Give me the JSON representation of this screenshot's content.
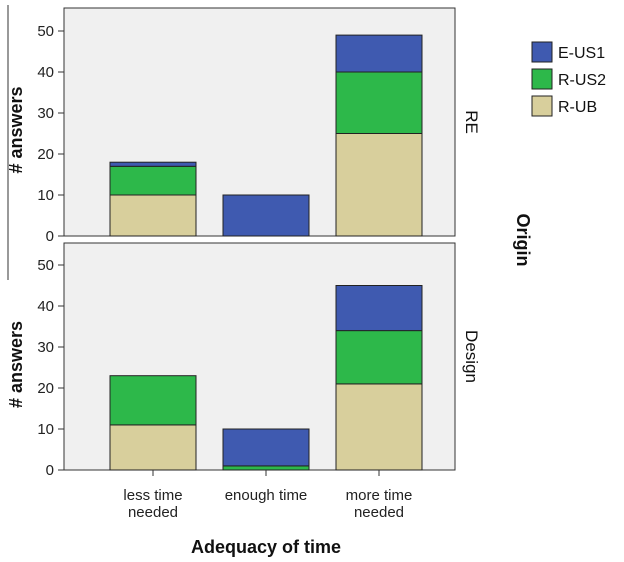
{
  "chart_data": {
    "type": "bar",
    "stacked": true,
    "categories": [
      "less time needed",
      "enough time",
      "more time needed"
    ],
    "category_lines": [
      [
        "less time",
        "needed"
      ],
      [
        "enough time"
      ],
      [
        "more time",
        "needed"
      ]
    ],
    "xlabel": "Adequacy of time",
    "ylabel": "# answers",
    "ylim": [
      0,
      55
    ],
    "yticks": [
      0,
      10,
      20,
      30,
      40,
      50
    ],
    "facet_title": "Origin",
    "legend": {
      "placement": "right",
      "entries": [
        {
          "name": "E-US1",
          "color": "#3f5ab0"
        },
        {
          "name": "R-US2",
          "color": "#2db84a"
        },
        {
          "name": "R-UB",
          "color": "#d8cf9c"
        }
      ]
    },
    "stack_order": [
      "R-UB",
      "R-US2",
      "E-US1"
    ],
    "panels": [
      {
        "label": "RE",
        "series": [
          {
            "name": "R-UB",
            "values": [
              10,
              0,
              25
            ]
          },
          {
            "name": "R-US2",
            "values": [
              7,
              0,
              15
            ]
          },
          {
            "name": "E-US1",
            "values": [
              1,
              10,
              9
            ]
          }
        ]
      },
      {
        "label": "Design",
        "series": [
          {
            "name": "R-UB",
            "values": [
              11,
              0,
              21
            ]
          },
          {
            "name": "R-US2",
            "values": [
              12,
              1,
              13
            ]
          },
          {
            "name": "E-US1",
            "values": [
              0,
              9,
              11
            ]
          }
        ]
      }
    ],
    "grid": false,
    "panel_background": "#f0f0f0"
  }
}
